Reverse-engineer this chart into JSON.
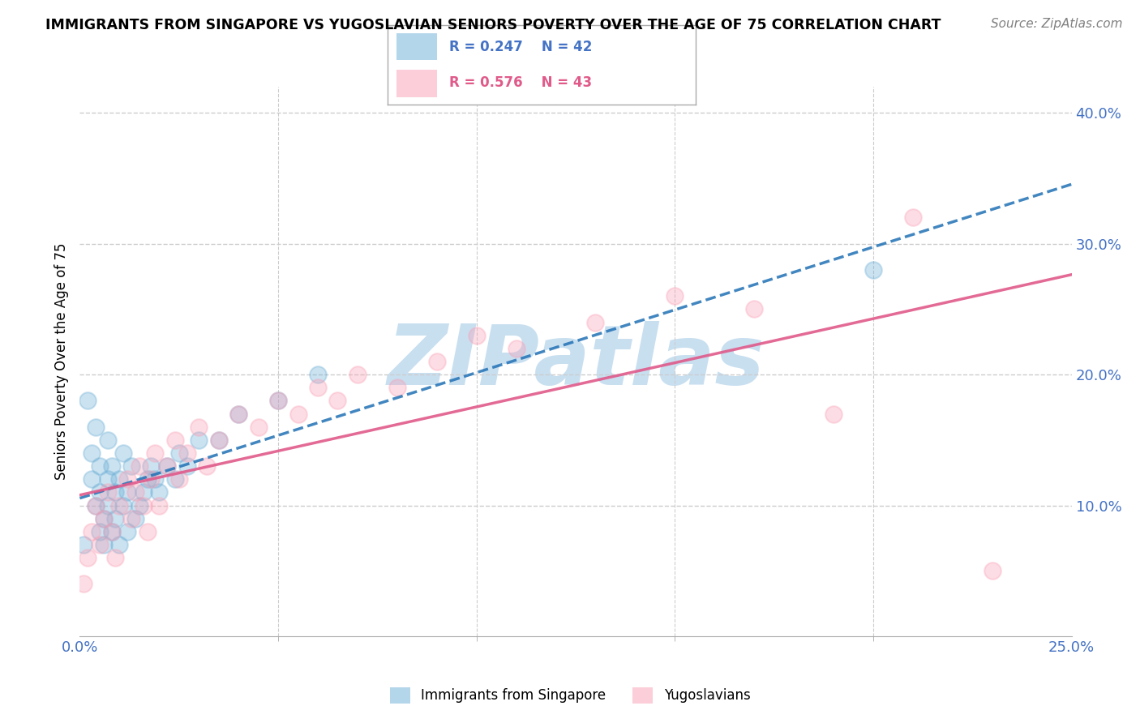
{
  "title": "IMMIGRANTS FROM SINGAPORE VS YUGOSLAVIAN SENIORS POVERTY OVER THE AGE OF 75 CORRELATION CHART",
  "source": "Source: ZipAtlas.com",
  "xlabel": "",
  "ylabel": "Seniors Poverty Over the Age of 75",
  "xlim": [
    0,
    0.25
  ],
  "ylim": [
    0,
    0.42
  ],
  "y_ticks_right": [
    0.1,
    0.2,
    0.3,
    0.4
  ],
  "y_tick_labels_right": [
    "10.0%",
    "20.0%",
    "30.0%",
    "40.0%"
  ],
  "legend1_r": "R = 0.247",
  "legend1_n": "N = 42",
  "legend2_r": "R = 0.576",
  "legend2_n": "N = 43",
  "blue_color": "#6baed6",
  "pink_color": "#fa9fb5",
  "blue_line_color": "#2171b5",
  "pink_line_color": "#e05a8a",
  "watermark": "ZIPatlas",
  "watermark_color": "#c8dff0",
  "legend_label_blue": "Immigrants from Singapore",
  "legend_label_pink": "Yugoslavians",
  "singapore_x": [
    0.001,
    0.002,
    0.003,
    0.003,
    0.004,
    0.004,
    0.005,
    0.005,
    0.005,
    0.006,
    0.006,
    0.007,
    0.007,
    0.007,
    0.008,
    0.008,
    0.009,
    0.009,
    0.01,
    0.01,
    0.011,
    0.011,
    0.012,
    0.012,
    0.013,
    0.014,
    0.015,
    0.016,
    0.017,
    0.018,
    0.019,
    0.02,
    0.022,
    0.024,
    0.025,
    0.027,
    0.03,
    0.035,
    0.04,
    0.05,
    0.06,
    0.2
  ],
  "singapore_y": [
    0.07,
    0.18,
    0.12,
    0.14,
    0.16,
    0.1,
    0.13,
    0.08,
    0.11,
    0.09,
    0.07,
    0.15,
    0.12,
    0.1,
    0.08,
    0.13,
    0.09,
    0.11,
    0.07,
    0.12,
    0.1,
    0.14,
    0.08,
    0.11,
    0.13,
    0.09,
    0.1,
    0.11,
    0.12,
    0.13,
    0.12,
    0.11,
    0.13,
    0.12,
    0.14,
    0.13,
    0.15,
    0.15,
    0.17,
    0.18,
    0.2,
    0.28
  ],
  "yugoslavian_x": [
    0.001,
    0.002,
    0.003,
    0.004,
    0.005,
    0.006,
    0.007,
    0.008,
    0.009,
    0.01,
    0.012,
    0.013,
    0.014,
    0.015,
    0.016,
    0.017,
    0.018,
    0.019,
    0.02,
    0.022,
    0.024,
    0.025,
    0.027,
    0.03,
    0.032,
    0.035,
    0.04,
    0.045,
    0.05,
    0.055,
    0.06,
    0.065,
    0.07,
    0.08,
    0.09,
    0.1,
    0.11,
    0.13,
    0.15,
    0.17,
    0.19,
    0.21,
    0.23
  ],
  "yugoslavian_y": [
    0.04,
    0.06,
    0.08,
    0.1,
    0.07,
    0.09,
    0.11,
    0.08,
    0.06,
    0.1,
    0.12,
    0.09,
    0.11,
    0.13,
    0.1,
    0.08,
    0.12,
    0.14,
    0.1,
    0.13,
    0.15,
    0.12,
    0.14,
    0.16,
    0.13,
    0.15,
    0.17,
    0.16,
    0.18,
    0.17,
    0.19,
    0.18,
    0.2,
    0.19,
    0.21,
    0.23,
    0.22,
    0.24,
    0.26,
    0.25,
    0.17,
    0.32,
    0.05
  ]
}
